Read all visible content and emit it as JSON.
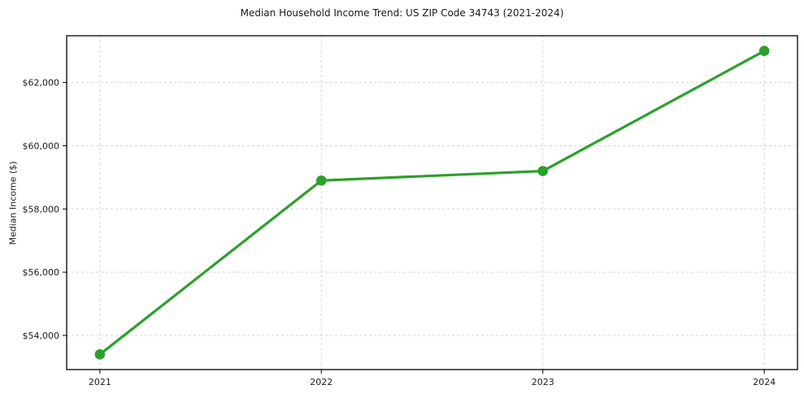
{
  "chart_data": {
    "type": "line",
    "title": "Median Household Income Trend: US ZIP Code 34743 (2021-2024)",
    "xlabel": "",
    "ylabel": "Median Income ($)",
    "x": [
      2021,
      2022,
      2023,
      2024
    ],
    "values": [
      53400,
      58900,
      59200,
      63000
    ],
    "xtick_labels": [
      "2021",
      "2022",
      "2023",
      "2024"
    ],
    "yticks": [
      54000,
      56000,
      58000,
      60000,
      62000
    ],
    "ytick_labels": [
      "$54,000",
      "$56,000",
      "$58,000",
      "$60,000",
      "$62,000"
    ],
    "xlim": [
      2020.85,
      2024.15
    ],
    "ylim": [
      52920,
      63480
    ],
    "line_color": "#2ca02c",
    "marker": "circle",
    "line_width": 3.2,
    "marker_radius": 6.3,
    "grid": {
      "show": true,
      "style": "dashed",
      "color": "#d4d4d4",
      "axes": "both"
    },
    "legend": "none",
    "frame_color": "#000000",
    "background_color": "#ffffff"
  }
}
